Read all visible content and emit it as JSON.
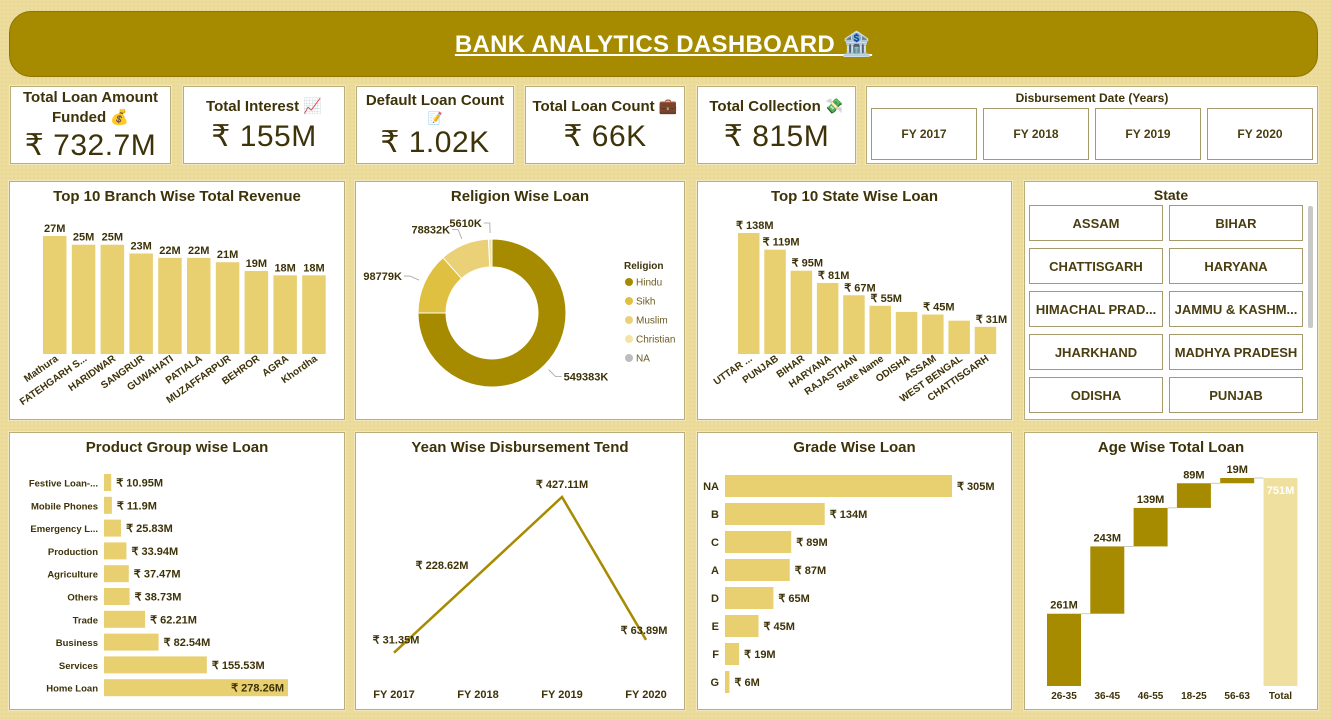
{
  "header": {
    "title": "BANK ANALYTICS DASHBOARD 🏦"
  },
  "kpis": {
    "loan_funded": {
      "label1": "Total Loan Amount",
      "label2": "Funded 💰",
      "value": "₹ 732.7M"
    },
    "interest": {
      "label": "Total Interest 📈",
      "value": "₹ 155M"
    },
    "default": {
      "label1": "Default Loan Count",
      "label2": "📝",
      "value": "₹ 1.02K"
    },
    "loan_count": {
      "label": "Total Loan Count 💼",
      "value": "₹ 66K"
    },
    "collection": {
      "label": "Total Collection 💸",
      "value": "₹ 815M"
    }
  },
  "date_slicer": {
    "title": "Disbursement Date (Years)",
    "options": [
      "FY 2017",
      "FY 2018",
      "FY 2019",
      "FY 2020"
    ]
  },
  "state_slicer": {
    "title": "State",
    "options": [
      "ASSAM",
      "BIHAR",
      "CHATTISGARH",
      "HARYANA",
      "HIMACHAL PRAD...",
      "JAMMU & KASHM...",
      "JHARKHAND",
      "MADHYA PRADESH",
      "ODISHA",
      "PUNJAB"
    ]
  },
  "chart_data": [
    {
      "id": "branch",
      "type": "bar",
      "title": "Top 10 Branch Wise Total Revenue",
      "categories": [
        "Mathura",
        "FATEHGARH S...",
        "HARIDWAR",
        "SANGRUR",
        "GUWAHATI",
        "PATIALA",
        "MUZAFFARPUR",
        "BEHROR",
        "AGRA",
        "Khordha"
      ],
      "values": [
        27,
        25,
        25,
        23,
        22,
        22,
        21,
        19,
        18,
        18
      ],
      "labels": [
        "27M",
        "25M",
        "25M",
        "23M",
        "22M",
        "22M",
        "21M",
        "19M",
        "18M",
        "18M"
      ],
      "color": "#e8d070"
    },
    {
      "id": "religion",
      "type": "pie",
      "title": "Religion Wise Loan",
      "legend_title": "Religion",
      "categories": [
        "Hindu",
        "Sikh",
        "Muslim",
        "Christian",
        "NA"
      ],
      "values": [
        549383,
        98779,
        78832,
        5610,
        0
      ],
      "labels": [
        "549383K",
        "98779K",
        "78832K",
        "5610K",
        ""
      ],
      "colors": [
        "#a68b00",
        "#e0c040",
        "#ead077",
        "#f2e3a6",
        "#bdbdbd"
      ]
    },
    {
      "id": "state",
      "type": "bar",
      "title": "Top 10 State Wise Loan",
      "categories": [
        "UTTAR ...",
        "PUNJAB",
        "BIHAR",
        "HARYANA",
        "RAJASTHAN",
        "State Name",
        "ODISHA",
        "ASSAM",
        "WEST BENGAL",
        "CHATTISGARH"
      ],
      "values": [
        138,
        119,
        95,
        81,
        67,
        55,
        48,
        45,
        38,
        31
      ],
      "labels": [
        "₹ 138M",
        "₹ 119M",
        "₹ 95M",
        "₹ 81M",
        "₹ 67M",
        "₹ 55M",
        "",
        "₹ 45M",
        "",
        "₹ 31M"
      ],
      "color": "#e8d070"
    },
    {
      "id": "product",
      "type": "bar",
      "title": "Product Group wise Loan",
      "categories": [
        "Festive Loan-...",
        "Mobile Phones",
        "Emergency L...",
        "Production",
        "Agriculture",
        "Others",
        "Trade",
        "Business",
        "Services",
        "Home Loan"
      ],
      "values": [
        10.95,
        11.9,
        25.83,
        33.94,
        37.47,
        38.73,
        62.21,
        82.54,
        155.53,
        278.26
      ],
      "labels": [
        "₹ 10.95M",
        "₹ 11.9M",
        "₹ 25.83M",
        "₹ 33.94M",
        "₹ 37.47M",
        "₹ 38.73M",
        "₹ 62.21M",
        "₹ 82.54M",
        "₹ 155.53M",
        "₹ 278.26M"
      ],
      "color": "#e8d070"
    },
    {
      "id": "yearly",
      "type": "line",
      "title": "Yean Wise Disbursement Tend",
      "categories": [
        "FY 2017",
        "FY 2018",
        "FY 2019",
        "FY 2020"
      ],
      "values": [
        31.35,
        228.62,
        427.11,
        63.89
      ],
      "labels": [
        "₹ 31.35M",
        "₹ 228.62M",
        "₹ 427.11M",
        "₹ 63.89M"
      ],
      "color": "#a68b00"
    },
    {
      "id": "grade",
      "type": "bar",
      "title": "Grade Wise Loan",
      "categories": [
        "NA",
        "B",
        "C",
        "A",
        "D",
        "E",
        "F",
        "G"
      ],
      "values": [
        305,
        134,
        89,
        87,
        65,
        45,
        19,
        6
      ],
      "labels": [
        "₹ 305M",
        "₹ 134M",
        "₹ 89M",
        "₹ 87M",
        "₹ 65M",
        "₹ 45M",
        "₹ 19M",
        "₹ 6M"
      ],
      "color": "#e8d070"
    },
    {
      "id": "age",
      "type": "bar",
      "subtype": "waterfall",
      "title": "Age Wise Total Loan",
      "categories": [
        "26-35",
        "36-45",
        "46-55",
        "18-25",
        "56-63",
        "Total"
      ],
      "values": [
        261,
        243,
        139,
        89,
        19,
        751
      ],
      "labels": [
        "261M",
        "243M",
        "139M",
        "89M",
        "19M",
        "751M"
      ],
      "colors": {
        "increase": "#a68b00",
        "total": "#f0e0a0"
      }
    }
  ]
}
